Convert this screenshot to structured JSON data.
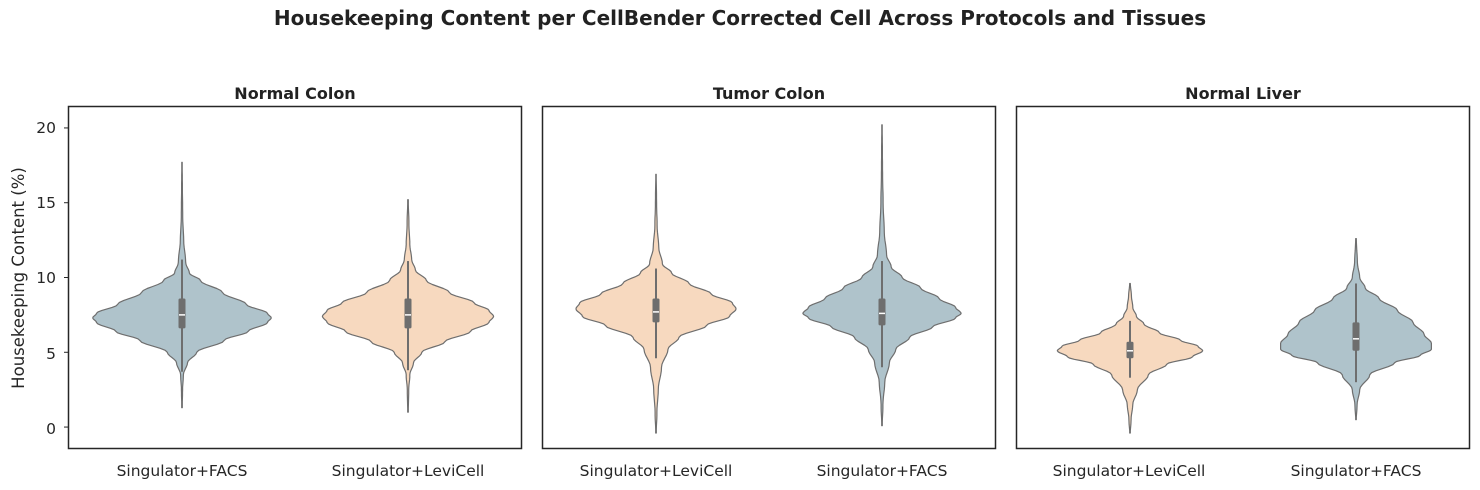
{
  "chart_data": {
    "type": "violin",
    "title": "Housekeeping Content per CellBender Corrected Cell Across Protocols and Tissues",
    "ylabel": "Housekeeping Content (%)",
    "xlabel": "",
    "ylim": [
      -1.4,
      21.4
    ],
    "yticks": [
      0,
      5,
      10,
      15,
      20
    ],
    "grid": false,
    "colors": {
      "Singulator+FACS": "#afc3cb",
      "Singulator+LeviCell": "#f7d9bf",
      "outline": "#6e6e6e",
      "box": "#6e6e6e",
      "median": "#ffffff",
      "frame": "#262626"
    },
    "panels": [
      {
        "title": "Normal Colon",
        "categories": [
          "Singulator+FACS",
          "Singulator+LeviCell"
        ],
        "violins": [
          {
            "category": "Singulator+FACS",
            "min": 1.3,
            "max": 17.7,
            "q1": 6.6,
            "median": 7.5,
            "q3": 8.6,
            "whisker_low": 3.7,
            "whisker_high": 11.2,
            "profile": [
              [
                1.3,
                0.003
              ],
              [
                2.5,
                0.006
              ],
              [
                3.5,
                0.015
              ],
              [
                4.3,
                0.06
              ],
              [
                5,
                0.16
              ],
              [
                5.8,
                0.46
              ],
              [
                6.4,
                0.72
              ],
              [
                7,
                0.93
              ],
              [
                7.3,
                0.97
              ],
              [
                7.6,
                0.93
              ],
              [
                8.2,
                0.7
              ],
              [
                9,
                0.44
              ],
              [
                9.8,
                0.2
              ],
              [
                10.3,
                0.08
              ],
              [
                11,
                0.04
              ],
              [
                12.5,
                0.018
              ],
              [
                14,
                0.008
              ],
              [
                16,
                0.004
              ],
              [
                17.7,
                0.002
              ]
            ]
          },
          {
            "category": "Singulator+LeviCell",
            "min": 1.0,
            "max": 15.2,
            "q1": 6.6,
            "median": 7.5,
            "q3": 8.6,
            "whisker_low": 3.8,
            "whisker_high": 11.1,
            "profile": [
              [
                1,
                0.003
              ],
              [
                2.5,
                0.008
              ],
              [
                3.5,
                0.02
              ],
              [
                4.3,
                0.06
              ],
              [
                5,
                0.15
              ],
              [
                5.7,
                0.4
              ],
              [
                6.4,
                0.68
              ],
              [
                7,
                0.88
              ],
              [
                7.4,
                0.93
              ],
              [
                7.8,
                0.88
              ],
              [
                8.3,
                0.72
              ],
              [
                9,
                0.45
              ],
              [
                9.8,
                0.2
              ],
              [
                10.5,
                0.08
              ],
              [
                11.2,
                0.04
              ],
              [
                12.2,
                0.02
              ],
              [
                13.5,
                0.01
              ],
              [
                15.2,
                0.003
              ]
            ]
          }
        ]
      },
      {
        "title": "Tumor Colon",
        "categories": [
          "Singulator+LeviCell",
          "Singulator+FACS"
        ],
        "violins": [
          {
            "category": "Singulator+LeviCell",
            "min": -0.4,
            "max": 16.9,
            "q1": 7.0,
            "median": 7.7,
            "q3": 8.6,
            "whisker_low": 4.6,
            "whisker_high": 10.6,
            "profile": [
              [
                -0.4,
                0.003
              ],
              [
                1,
                0.01
              ],
              [
                2.5,
                0.025
              ],
              [
                4,
                0.06
              ],
              [
                5.2,
                0.13
              ],
              [
                6,
                0.25
              ],
              [
                6.8,
                0.55
              ],
              [
                7.4,
                0.8
              ],
              [
                7.9,
                0.87
              ],
              [
                8.3,
                0.83
              ],
              [
                8.9,
                0.6
              ],
              [
                9.6,
                0.36
              ],
              [
                10.3,
                0.17
              ],
              [
                10.9,
                0.07
              ],
              [
                12,
                0.03
              ],
              [
                13.5,
                0.012
              ],
              [
                15,
                0.006
              ],
              [
                16.9,
                0.002
              ]
            ]
          },
          {
            "category": "Singulator+FACS",
            "min": 0.1,
            "max": 20.2,
            "q1": 6.8,
            "median": 7.6,
            "q3": 8.6,
            "whisker_low": 4.0,
            "whisker_high": 11.1,
            "profile": [
              [
                0.1,
                0.003
              ],
              [
                1.5,
                0.01
              ],
              [
                3,
                0.03
              ],
              [
                4.3,
                0.08
              ],
              [
                5.2,
                0.15
              ],
              [
                6,
                0.3
              ],
              [
                6.7,
                0.55
              ],
              [
                7.3,
                0.8
              ],
              [
                7.6,
                0.86
              ],
              [
                8,
                0.8
              ],
              [
                8.6,
                0.62
              ],
              [
                9.3,
                0.42
              ],
              [
                10,
                0.22
              ],
              [
                10.7,
                0.1
              ],
              [
                11.5,
                0.05
              ],
              [
                13,
                0.025
              ],
              [
                15,
                0.012
              ],
              [
                17,
                0.006
              ],
              [
                18.5,
                0.004
              ],
              [
                20.2,
                0.002
              ]
            ]
          }
        ]
      },
      {
        "title": "Normal Liver",
        "categories": [
          "Singulator+LeviCell",
          "Singulator+FACS"
        ],
        "violins": [
          {
            "category": "Singulator+LeviCell",
            "min": -0.4,
            "max": 9.6,
            "q1": 4.6,
            "median": 5.1,
            "q3": 5.7,
            "whisker_low": 3.3,
            "whisker_high": 7.1,
            "profile": [
              [
                -0.4,
                0.003
              ],
              [
                0.5,
                0.012
              ],
              [
                1.5,
                0.03
              ],
              [
                2.5,
                0.08
              ],
              [
                3.5,
                0.2
              ],
              [
                4.2,
                0.4
              ],
              [
                4.7,
                0.68
              ],
              [
                5.1,
                0.79
              ],
              [
                5.4,
                0.74
              ],
              [
                5.8,
                0.55
              ],
              [
                6.3,
                0.32
              ],
              [
                6.9,
                0.15
              ],
              [
                7.4,
                0.07
              ],
              [
                8,
                0.03
              ],
              [
                8.8,
                0.015
              ],
              [
                9.6,
                0.003
              ]
            ]
          },
          {
            "category": "Singulator+FACS",
            "min": 0.5,
            "max": 12.6,
            "q1": 5.1,
            "median": 5.9,
            "q3": 7.0,
            "whisker_low": 3.0,
            "whisker_high": 9.6,
            "profile": [
              [
                0.5,
                0.003
              ],
              [
                1.5,
                0.012
              ],
              [
                2.5,
                0.04
              ],
              [
                3.5,
                0.15
              ],
              [
                4.3,
                0.42
              ],
              [
                4.8,
                0.7
              ],
              [
                5.2,
                0.82
              ],
              [
                5.6,
                0.82
              ],
              [
                6.2,
                0.74
              ],
              [
                7,
                0.62
              ],
              [
                7.8,
                0.45
              ],
              [
                8.6,
                0.25
              ],
              [
                9.3,
                0.1
              ],
              [
                10,
                0.04
              ],
              [
                11,
                0.015
              ],
              [
                12.6,
                0.003
              ]
            ]
          }
        ]
      }
    ]
  }
}
